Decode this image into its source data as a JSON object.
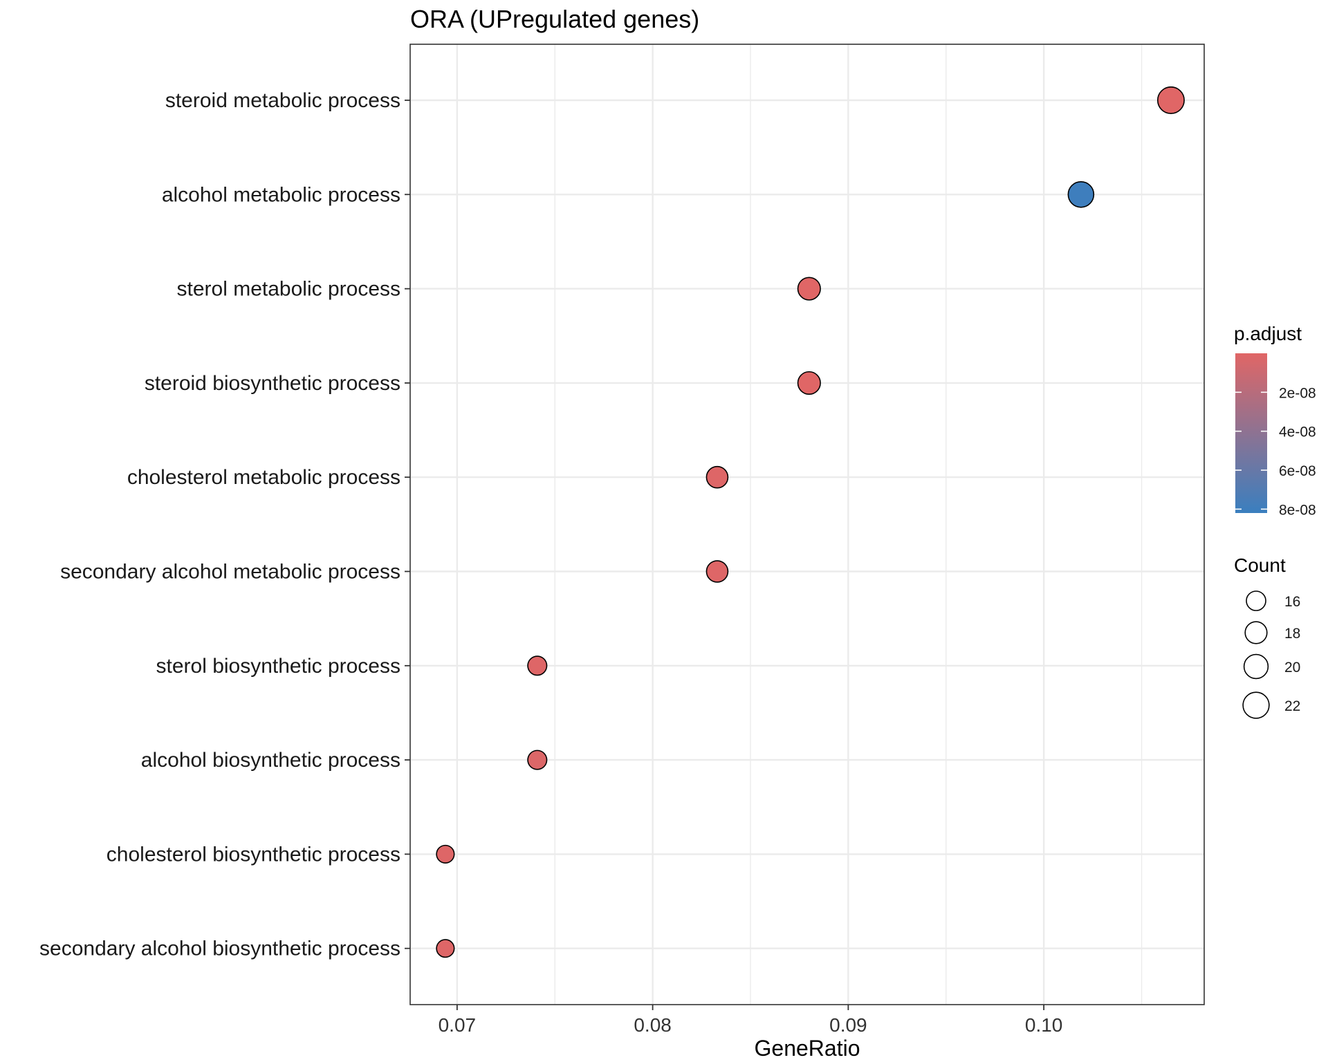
{
  "chart_data": {
    "type": "scatter",
    "title": "ORA (UPregulated genes)",
    "xlabel": "GeneRatio",
    "ylabel": "",
    "xlim": [
      0.0676,
      0.1082
    ],
    "x_ticks": [
      0.07,
      0.08,
      0.09,
      0.1
    ],
    "x_tick_labels": [
      "0.07",
      "0.08",
      "0.09",
      "0.10"
    ],
    "grid": true,
    "categories": [
      "steroid metabolic process",
      "alcohol metabolic process",
      "sterol metabolic process",
      "steroid biosynthetic process",
      "cholesterol metabolic process",
      "secondary alcohol metabolic process",
      "sterol biosynthetic process",
      "alcohol biosynthetic process",
      "cholesterol biosynthetic process",
      "secondary alcohol biosynthetic process"
    ],
    "points": [
      {
        "term": "steroid metabolic process",
        "gene_ratio": 0.1065,
        "count": 23,
        "p_adjust": 1e-10
      },
      {
        "term": "alcohol metabolic process",
        "gene_ratio": 0.1019,
        "count": 22,
        "p_adjust": 8e-08
      },
      {
        "term": "sterol metabolic process",
        "gene_ratio": 0.088,
        "count": 19,
        "p_adjust": 1e-10
      },
      {
        "term": "steroid biosynthetic process",
        "gene_ratio": 0.088,
        "count": 19,
        "p_adjust": 1e-10
      },
      {
        "term": "cholesterol metabolic process",
        "gene_ratio": 0.0833,
        "count": 18,
        "p_adjust": 1e-09
      },
      {
        "term": "secondary alcohol metabolic process",
        "gene_ratio": 0.0833,
        "count": 18,
        "p_adjust": 1e-09
      },
      {
        "term": "sterol biosynthetic process",
        "gene_ratio": 0.0741,
        "count": 16,
        "p_adjust": 1e-09
      },
      {
        "term": "alcohol biosynthetic process",
        "gene_ratio": 0.0741,
        "count": 16,
        "p_adjust": 2e-09
      },
      {
        "term": "cholesterol biosynthetic process",
        "gene_ratio": 0.0694,
        "count": 15,
        "p_adjust": 1e-09
      },
      {
        "term": "secondary alcohol biosynthetic process",
        "gene_ratio": 0.0694,
        "count": 15,
        "p_adjust": 1e-09
      }
    ],
    "color_legend": {
      "title": "p.adjust",
      "min": 0,
      "max": 8.2e-08,
      "low_color": "#E06666",
      "high_color": "#3A7FBF",
      "tick_values": [
        2e-08,
        4e-08,
        6e-08,
        8e-08
      ],
      "tick_labels": [
        "2e-08",
        "4e-08",
        "6e-08",
        "8e-08"
      ]
    },
    "size_legend": {
      "title": "Count",
      "values": [
        16,
        18,
        20,
        22
      ],
      "labels": [
        "16",
        "18",
        "20",
        "22"
      ]
    },
    "colors": {
      "grid": "#EBEBEB",
      "panel_border": "#333333",
      "point_outline": "#000000"
    }
  }
}
